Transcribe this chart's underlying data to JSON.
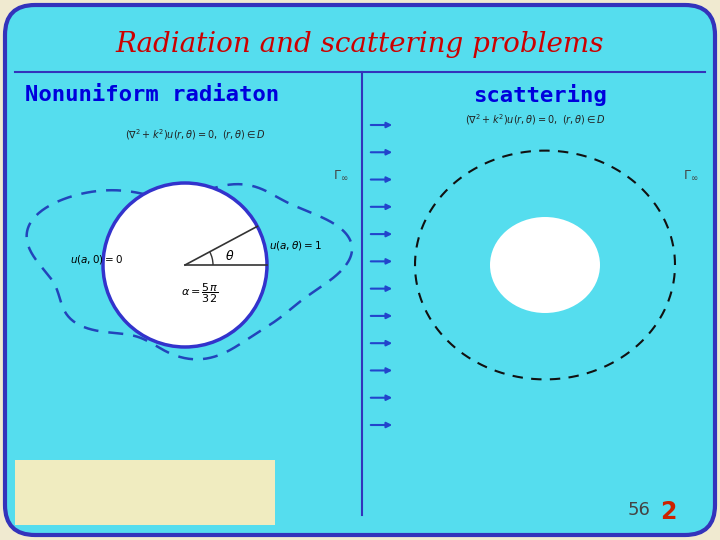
{
  "title": "Radiation and scattering problems",
  "title_color": "#cc0000",
  "title_fontsize": 20,
  "bg_color": "#55ddee",
  "border_color": "#3333bb",
  "left_label": "Nonuniform radiaton",
  "right_label": "scattering",
  "label_color": "#0000dd",
  "label_fontsize": 16,
  "slide_number": "56",
  "slide_number2": "2",
  "slide_num_color": "#444444",
  "slide_num2_color": "#cc2200",
  "eq_color": "#222222",
  "gamma_color": "#444444",
  "arrow_color": "#2244cc",
  "inner_circle_color": "#3333cc",
  "outer_blob_color": "#2244bb",
  "white_fill": "#ffffff",
  "cream_color": "#f0ecc0",
  "bg_outer": "#f0ead0"
}
